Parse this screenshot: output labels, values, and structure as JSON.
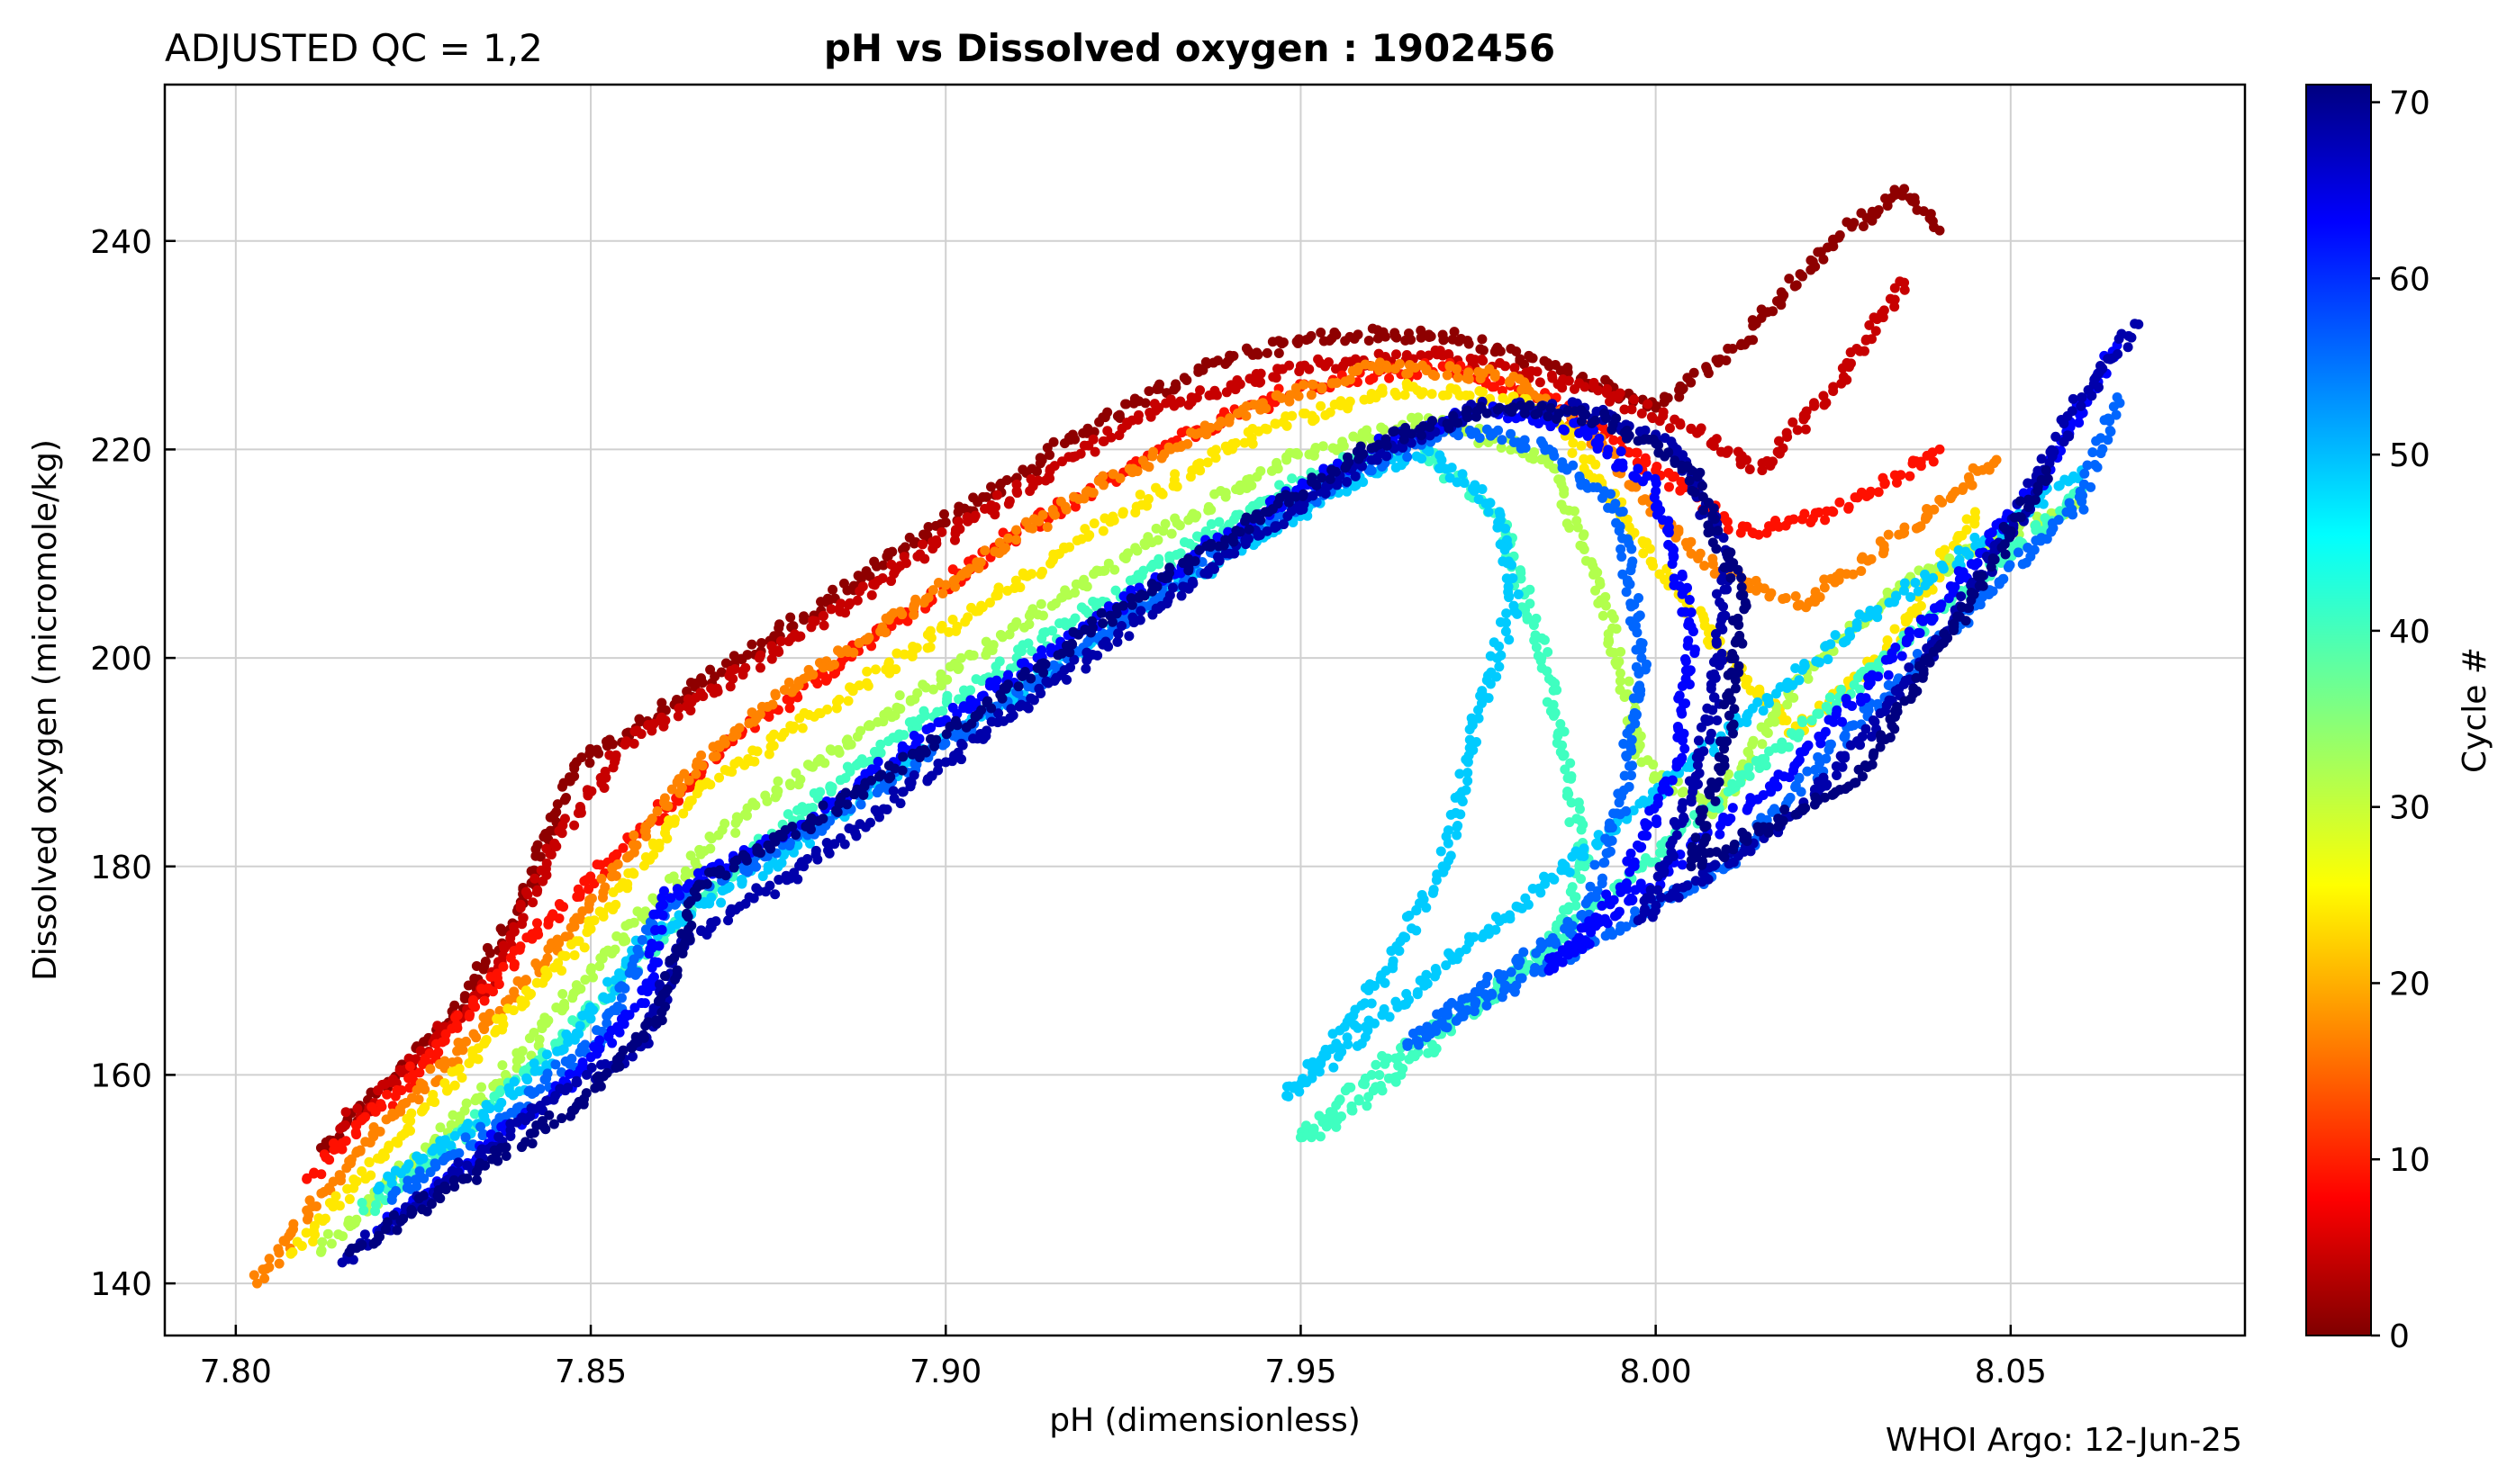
{
  "header": {
    "qc_label": "ADJUSTED QC = 1,2",
    "title": "pH vs Dissolved oxygen : 1902456"
  },
  "footer": {
    "credit": "WHOI Argo: 12-Jun-25"
  },
  "colorbar": {
    "label": "Cycle #",
    "min": 0,
    "max": 71,
    "ticks": [
      "0",
      "10",
      "20",
      "30",
      "40",
      "50",
      "60",
      "70"
    ],
    "colormap": "jet-reversed (0 = dark red, 71 = dark blue)"
  },
  "chart_data": {
    "type": "scatter",
    "title": "pH vs Dissolved oxygen : 1902456",
    "xlabel": "pH  (dimensionless)",
    "ylabel": "Dissolved oxygen  (micromole/kg)",
    "xlim": [
      7.79,
      8.083
    ],
    "ylim": [
      135,
      255
    ],
    "xticks": [
      "7.80",
      "7.85",
      "7.90",
      "7.95",
      "8.00",
      "8.05"
    ],
    "yticks": [
      "140",
      "160",
      "180",
      "200",
      "220",
      "240"
    ],
    "grid": true,
    "color_by": "Cycle #",
    "series": [
      {
        "cycle": 1,
        "points": [
          [
            7.812,
            153
          ],
          [
            7.83,
            165
          ],
          [
            7.84,
            176
          ],
          [
            7.848,
            190
          ],
          [
            7.86,
            195
          ],
          [
            7.88,
            204
          ],
          [
            7.9,
            213
          ],
          [
            7.92,
            222
          ],
          [
            7.94,
            229
          ],
          [
            7.955,
            231
          ],
          [
            7.97,
            231
          ],
          [
            7.985,
            228
          ],
          [
            8.0,
            224
          ],
          [
            8.012,
            230
          ],
          [
            8.025,
            240
          ],
          [
            8.035,
            245
          ],
          [
            8.04,
            241
          ]
        ]
      },
      {
        "cycle": 5,
        "points": [
          [
            7.815,
            155
          ],
          [
            7.835,
            168
          ],
          [
            7.845,
            182
          ],
          [
            7.855,
            192
          ],
          [
            7.87,
            198
          ],
          [
            7.89,
            207
          ],
          [
            7.91,
            216
          ],
          [
            7.93,
            224
          ],
          [
            7.95,
            228
          ],
          [
            7.97,
            229
          ],
          [
            7.99,
            226
          ],
          [
            8.005,
            222
          ],
          [
            8.015,
            218
          ],
          [
            8.025,
            226
          ],
          [
            8.035,
            236
          ]
        ]
      },
      {
        "cycle": 10,
        "points": [
          [
            7.81,
            150
          ],
          [
            7.825,
            160
          ],
          [
            7.84,
            172
          ],
          [
            7.858,
            184
          ],
          [
            7.87,
            192
          ],
          [
            7.89,
            202
          ],
          [
            7.91,
            212
          ],
          [
            7.93,
            220
          ],
          [
            7.95,
            226
          ],
          [
            7.97,
            228
          ],
          [
            7.985,
            225
          ],
          [
            8.0,
            218
          ],
          [
            8.012,
            212
          ],
          [
            8.025,
            214
          ],
          [
            8.04,
            220
          ]
        ]
      },
      {
        "cycle": 18,
        "points": [
          [
            7.803,
            140
          ],
          [
            7.81,
            147
          ],
          [
            7.822,
            156
          ],
          [
            7.838,
            167
          ],
          [
            7.852,
            178
          ],
          [
            7.865,
            190
          ],
          [
            7.88,
            198
          ],
          [
            7.9,
            207
          ],
          [
            7.92,
            216
          ],
          [
            7.94,
            223
          ],
          [
            7.96,
            228
          ],
          [
            7.98,
            227
          ],
          [
            7.993,
            220
          ],
          [
            8.005,
            210
          ],
          [
            8.02,
            205
          ],
          [
            8.035,
            212
          ],
          [
            8.048,
            219
          ]
        ]
      },
      {
        "cycle": 25,
        "points": [
          [
            7.808,
            143
          ],
          [
            7.82,
            152
          ],
          [
            7.835,
            163
          ],
          [
            7.85,
            174
          ],
          [
            7.865,
            187
          ],
          [
            7.885,
            196
          ],
          [
            7.905,
            205
          ],
          [
            7.925,
            214
          ],
          [
            7.945,
            222
          ],
          [
            7.965,
            226
          ],
          [
            7.985,
            224
          ],
          [
            7.997,
            212
          ],
          [
            8.01,
            200
          ],
          [
            8.02,
            193
          ],
          [
            8.032,
            200
          ],
          [
            8.045,
            214
          ]
        ]
      },
      {
        "cycle": 32,
        "points": [
          [
            7.812,
            143
          ],
          [
            7.822,
            150
          ],
          [
            7.838,
            160
          ],
          [
            7.85,
            170
          ],
          [
            7.868,
            183
          ],
          [
            7.888,
            193
          ],
          [
            7.908,
            202
          ],
          [
            7.928,
            211
          ],
          [
            7.948,
            219
          ],
          [
            7.968,
            223
          ],
          [
            7.985,
            219
          ],
          [
            7.993,
            205
          ],
          [
            7.998,
            190
          ],
          [
            8.008,
            185
          ],
          [
            8.02,
            198
          ],
          [
            8.035,
            207
          ],
          [
            8.06,
            215
          ]
        ]
      },
      {
        "cycle": 40,
        "points": [
          [
            7.818,
            147
          ],
          [
            7.83,
            153
          ],
          [
            7.845,
            163
          ],
          [
            7.855,
            170
          ],
          [
            7.872,
            181
          ],
          [
            7.89,
            191
          ],
          [
            7.91,
            200
          ],
          [
            7.93,
            209
          ],
          [
            7.95,
            217
          ],
          [
            7.965,
            221
          ],
          [
            7.978,
            214
          ],
          [
            7.985,
            198
          ],
          [
            7.99,
            180
          ],
          [
            7.985,
            172
          ],
          [
            7.975,
            167
          ],
          [
            7.965,
            163
          ],
          [
            7.96,
            160
          ],
          [
            7.95,
            154
          ],
          [
            7.955,
            155
          ],
          [
            8.06,
            216
          ]
        ]
      },
      {
        "cycle": 48,
        "points": [
          [
            7.82,
            149
          ],
          [
            7.835,
            156
          ],
          [
            7.848,
            164
          ],
          [
            7.858,
            173
          ],
          [
            7.875,
            180
          ],
          [
            7.895,
            190
          ],
          [
            7.915,
            199
          ],
          [
            7.935,
            208
          ],
          [
            7.955,
            216
          ],
          [
            7.968,
            220
          ],
          [
            7.978,
            214
          ],
          [
            7.98,
            205
          ],
          [
            7.975,
            195
          ],
          [
            7.97,
            180
          ],
          [
            7.962,
            170
          ],
          [
            7.955,
            163
          ],
          [
            7.948,
            158
          ],
          [
            8.03,
            204
          ],
          [
            8.05,
            213
          ],
          [
            8.06,
            218
          ]
        ]
      },
      {
        "cycle": 55,
        "points": [
          [
            7.822,
            148
          ],
          [
            7.838,
            156
          ],
          [
            7.852,
            164
          ],
          [
            7.86,
            176
          ],
          [
            7.878,
            182
          ],
          [
            7.898,
            191
          ],
          [
            7.918,
            200
          ],
          [
            7.938,
            210
          ],
          [
            7.958,
            218
          ],
          [
            7.972,
            222
          ],
          [
            7.985,
            220
          ],
          [
            7.995,
            214
          ],
          [
            7.998,
            200
          ],
          [
            7.995,
            185
          ],
          [
            7.99,
            175
          ],
          [
            7.975,
            168
          ],
          [
            7.965,
            163
          ],
          [
            8.01,
            180
          ],
          [
            8.03,
            195
          ],
          [
            8.045,
            205
          ],
          [
            8.06,
            215
          ],
          [
            8.065,
            225
          ]
        ]
      },
      {
        "cycle": 62,
        "points": [
          [
            7.82,
            145
          ],
          [
            7.835,
            153
          ],
          [
            7.848,
            160
          ],
          [
            7.858,
            168
          ],
          [
            7.86,
            177
          ],
          [
            7.88,
            184
          ],
          [
            7.9,
            194
          ],
          [
            7.92,
            203
          ],
          [
            7.94,
            212
          ],
          [
            7.96,
            220
          ],
          [
            7.975,
            224
          ],
          [
            7.99,
            222
          ],
          [
            8.0,
            216
          ],
          [
            8.005,
            203
          ],
          [
            8.003,
            190
          ],
          [
            7.995,
            178
          ],
          [
            7.985,
            170
          ],
          [
            8.02,
            190
          ],
          [
            8.04,
            205
          ],
          [
            8.055,
            218
          ],
          [
            8.065,
            230
          ]
        ]
      },
      {
        "cycle": 68,
        "points": [
          [
            7.815,
            142
          ],
          [
            7.83,
            150
          ],
          [
            7.845,
            158
          ],
          [
            7.858,
            163
          ],
          [
            7.862,
            172
          ],
          [
            7.88,
            180
          ],
          [
            7.9,
            190
          ],
          [
            7.92,
            200
          ],
          [
            7.94,
            210
          ],
          [
            7.96,
            219
          ],
          [
            7.975,
            224
          ],
          [
            7.99,
            224
          ],
          [
            8.003,
            220
          ],
          [
            8.01,
            210
          ],
          [
            8.008,
            195
          ],
          [
            8.003,
            183
          ],
          [
            7.998,
            175
          ],
          [
            8.02,
            185
          ],
          [
            8.038,
            200
          ],
          [
            8.05,
            212
          ],
          [
            8.06,
            225
          ],
          [
            8.068,
            232
          ]
        ]
      },
      {
        "cycle": 71,
        "points": [
          [
            7.816,
            143
          ],
          [
            7.832,
            150
          ],
          [
            7.848,
            157
          ],
          [
            7.86,
            166
          ],
          [
            7.865,
            178
          ],
          [
            7.885,
            186
          ],
          [
            7.905,
            195
          ],
          [
            7.925,
            205
          ],
          [
            7.945,
            214
          ],
          [
            7.962,
            221
          ],
          [
            7.978,
            224
          ],
          [
            7.993,
            223
          ],
          [
            8.005,
            218
          ],
          [
            8.012,
            206
          ],
          [
            8.01,
            192
          ],
          [
            8.005,
            180
          ],
          [
            8.028,
            188
          ],
          [
            8.042,
            203
          ],
          [
            8.055,
            218
          ]
        ]
      }
    ]
  }
}
